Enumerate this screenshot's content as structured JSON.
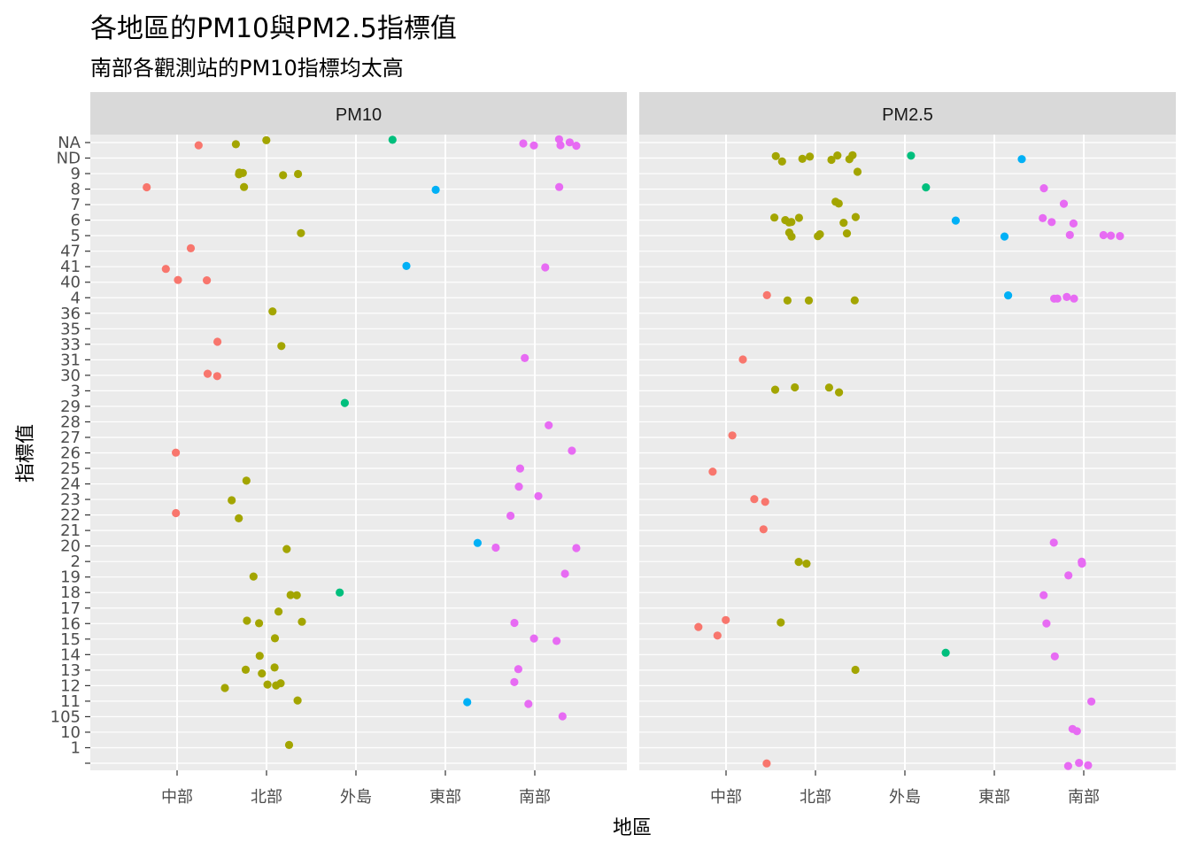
{
  "chart_data": {
    "type": "scatter",
    "title": "各地區的PM10與PM2.5指標值",
    "subtitle": "南部各觀測站的PM10指標均太高",
    "xlabel": "地區",
    "ylabel": "指標值",
    "categories": [
      "中部",
      "北部",
      "外島",
      "東部",
      "南部"
    ],
    "y_levels": [
      "",
      "1",
      "10",
      "105",
      "11",
      "12",
      "13",
      "14",
      "15",
      "16",
      "17",
      "18",
      "19",
      "2",
      "20",
      "21",
      "22",
      "23",
      "24",
      "25",
      "26",
      "27",
      "28",
      "29",
      "3",
      "30",
      "31",
      "33",
      "35",
      "36",
      "4",
      "40",
      "41",
      "47",
      "5",
      "6",
      "7",
      "8",
      "9",
      "ND",
      "NA"
    ],
    "colors": {
      "中部": "#F8766D",
      "北部": "#A3A500",
      "外島": "#00BF7D",
      "東部": "#00B0F6",
      "南部": "#E76BF3"
    },
    "grid": true,
    "legend": "none",
    "jitter": true,
    "facets": [
      {
        "label": "PM10",
        "points": [
          {
            "x": "中部",
            "y": "NA"
          },
          {
            "x": "中部",
            "y": "8"
          },
          {
            "x": "中部",
            "y": "47"
          },
          {
            "x": "中部",
            "y": "41"
          },
          {
            "x": "中部",
            "y": "40"
          },
          {
            "x": "中部",
            "y": "40"
          },
          {
            "x": "中部",
            "y": "33"
          },
          {
            "x": "中部",
            "y": "30"
          },
          {
            "x": "中部",
            "y": "30"
          },
          {
            "x": "中部",
            "y": "26"
          },
          {
            "x": "中部",
            "y": "22"
          },
          {
            "x": "北部",
            "y": "NA"
          },
          {
            "x": "北部",
            "y": "NA"
          },
          {
            "x": "北部",
            "y": "9"
          },
          {
            "x": "北部",
            "y": "9"
          },
          {
            "x": "北部",
            "y": "9"
          },
          {
            "x": "北部",
            "y": "9"
          },
          {
            "x": "北部",
            "y": "9"
          },
          {
            "x": "北部",
            "y": "8"
          },
          {
            "x": "北部",
            "y": "5"
          },
          {
            "x": "北部",
            "y": "36"
          },
          {
            "x": "北部",
            "y": "33"
          },
          {
            "x": "北部",
            "y": "24"
          },
          {
            "x": "北部",
            "y": "23"
          },
          {
            "x": "北部",
            "y": "22"
          },
          {
            "x": "北部",
            "y": "20"
          },
          {
            "x": "北部",
            "y": "19"
          },
          {
            "x": "北部",
            "y": "18"
          },
          {
            "x": "北部",
            "y": "18"
          },
          {
            "x": "北部",
            "y": "17"
          },
          {
            "x": "北部",
            "y": "16"
          },
          {
            "x": "北部",
            "y": "16"
          },
          {
            "x": "北部",
            "y": "16"
          },
          {
            "x": "北部",
            "y": "15"
          },
          {
            "x": "北部",
            "y": "14"
          },
          {
            "x": "北部",
            "y": "13"
          },
          {
            "x": "北部",
            "y": "13"
          },
          {
            "x": "北部",
            "y": "13"
          },
          {
            "x": "北部",
            "y": "12"
          },
          {
            "x": "北部",
            "y": "12"
          },
          {
            "x": "北部",
            "y": "12"
          },
          {
            "x": "北部",
            "y": "12"
          },
          {
            "x": "北部",
            "y": "11"
          },
          {
            "x": "北部",
            "y": "1"
          },
          {
            "x": "外島",
            "y": "NA"
          },
          {
            "x": "外島",
            "y": "29"
          },
          {
            "x": "外島",
            "y": "18"
          },
          {
            "x": "東部",
            "y": "8"
          },
          {
            "x": "東部",
            "y": "41"
          },
          {
            "x": "東部",
            "y": "20"
          },
          {
            "x": "東部",
            "y": "11"
          },
          {
            "x": "南部",
            "y": "NA"
          },
          {
            "x": "南部",
            "y": "NA"
          },
          {
            "x": "南部",
            "y": "NA"
          },
          {
            "x": "南部",
            "y": "NA"
          },
          {
            "x": "南部",
            "y": "NA"
          },
          {
            "x": "南部",
            "y": "NA"
          },
          {
            "x": "南部",
            "y": "8"
          },
          {
            "x": "南部",
            "y": "41"
          },
          {
            "x": "南部",
            "y": "31"
          },
          {
            "x": "南部",
            "y": "28"
          },
          {
            "x": "南部",
            "y": "26"
          },
          {
            "x": "南部",
            "y": "25"
          },
          {
            "x": "南部",
            "y": "24"
          },
          {
            "x": "南部",
            "y": "23"
          },
          {
            "x": "南部",
            "y": "22"
          },
          {
            "x": "南部",
            "y": "20"
          },
          {
            "x": "南部",
            "y": "20"
          },
          {
            "x": "南部",
            "y": "19"
          },
          {
            "x": "南部",
            "y": "16"
          },
          {
            "x": "南部",
            "y": "15"
          },
          {
            "x": "南部",
            "y": "15"
          },
          {
            "x": "南部",
            "y": "13"
          },
          {
            "x": "南部",
            "y": "12"
          },
          {
            "x": "南部",
            "y": "11"
          },
          {
            "x": "南部",
            "y": "105"
          }
        ]
      },
      {
        "label": "PM2.5",
        "points": [
          {
            "x": "中部",
            "y": "4"
          },
          {
            "x": "中部",
            "y": "31"
          },
          {
            "x": "中部",
            "y": "27"
          },
          {
            "x": "中部",
            "y": "25"
          },
          {
            "x": "中部",
            "y": "23"
          },
          {
            "x": "中部",
            "y": "23"
          },
          {
            "x": "中部",
            "y": "21"
          },
          {
            "x": "中部",
            "y": "16"
          },
          {
            "x": "中部",
            "y": "16"
          },
          {
            "x": "中部",
            "y": "15"
          },
          {
            "x": "中部",
            "y": ""
          },
          {
            "x": "北部",
            "y": "ND"
          },
          {
            "x": "北部",
            "y": "ND"
          },
          {
            "x": "北部",
            "y": "ND"
          },
          {
            "x": "北部",
            "y": "ND"
          },
          {
            "x": "北部",
            "y": "ND"
          },
          {
            "x": "北部",
            "y": "ND"
          },
          {
            "x": "北部",
            "y": "ND"
          },
          {
            "x": "北部",
            "y": "ND"
          },
          {
            "x": "北部",
            "y": "9"
          },
          {
            "x": "北部",
            "y": "7"
          },
          {
            "x": "北部",
            "y": "7"
          },
          {
            "x": "北部",
            "y": "6"
          },
          {
            "x": "北部",
            "y": "6"
          },
          {
            "x": "北部",
            "y": "6"
          },
          {
            "x": "北部",
            "y": "6"
          },
          {
            "x": "北部",
            "y": "6"
          },
          {
            "x": "北部",
            "y": "6"
          },
          {
            "x": "北部",
            "y": "6"
          },
          {
            "x": "北部",
            "y": "5"
          },
          {
            "x": "北部",
            "y": "5"
          },
          {
            "x": "北部",
            "y": "5"
          },
          {
            "x": "北部",
            "y": "5"
          },
          {
            "x": "北部",
            "y": "5"
          },
          {
            "x": "北部",
            "y": "4"
          },
          {
            "x": "北部",
            "y": "4"
          },
          {
            "x": "北部",
            "y": "4"
          },
          {
            "x": "北部",
            "y": "3"
          },
          {
            "x": "北部",
            "y": "3"
          },
          {
            "x": "北部",
            "y": "3"
          },
          {
            "x": "北部",
            "y": "3"
          },
          {
            "x": "北部",
            "y": "2"
          },
          {
            "x": "北部",
            "y": "2"
          },
          {
            "x": "北部",
            "y": "16"
          },
          {
            "x": "北部",
            "y": "13"
          },
          {
            "x": "外島",
            "y": "ND"
          },
          {
            "x": "外島",
            "y": "8"
          },
          {
            "x": "外島",
            "y": "14"
          },
          {
            "x": "東部",
            "y": "ND"
          },
          {
            "x": "東部",
            "y": "6"
          },
          {
            "x": "東部",
            "y": "5"
          },
          {
            "x": "東部",
            "y": "4"
          },
          {
            "x": "南部",
            "y": "8"
          },
          {
            "x": "南部",
            "y": "7"
          },
          {
            "x": "南部",
            "y": "6"
          },
          {
            "x": "南部",
            "y": "6"
          },
          {
            "x": "南部",
            "y": "6"
          },
          {
            "x": "南部",
            "y": "5"
          },
          {
            "x": "南部",
            "y": "5"
          },
          {
            "x": "南部",
            "y": "5"
          },
          {
            "x": "南部",
            "y": "5"
          },
          {
            "x": "南部",
            "y": "4"
          },
          {
            "x": "南部",
            "y": "4"
          },
          {
            "x": "南部",
            "y": "4"
          },
          {
            "x": "南部",
            "y": "4"
          },
          {
            "x": "南部",
            "y": "20"
          },
          {
            "x": "南部",
            "y": "2"
          },
          {
            "x": "南部",
            "y": "2"
          },
          {
            "x": "南部",
            "y": "19"
          },
          {
            "x": "南部",
            "y": "18"
          },
          {
            "x": "南部",
            "y": "16"
          },
          {
            "x": "南部",
            "y": "14"
          },
          {
            "x": "南部",
            "y": "11"
          },
          {
            "x": "南部",
            "y": "10"
          },
          {
            "x": "南部",
            "y": "10"
          },
          {
            "x": "南部",
            "y": ""
          },
          {
            "x": "南部",
            "y": ""
          },
          {
            "x": "南部",
            "y": ""
          }
        ]
      }
    ]
  }
}
